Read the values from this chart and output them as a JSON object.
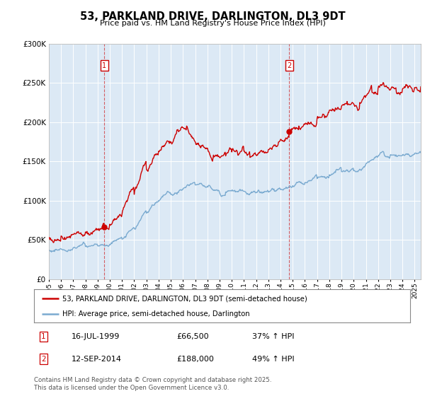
{
  "title": "53, PARKLAND DRIVE, DARLINGTON, DL3 9DT",
  "subtitle": "Price paid vs. HM Land Registry's House Price Index (HPI)",
  "plot_bg_color": "#dce9f5",
  "ylim": [
    0,
    300000
  ],
  "yticks": [
    0,
    50000,
    100000,
    150000,
    200000,
    250000,
    300000
  ],
  "ytick_labels": [
    "£0",
    "£50K",
    "£100K",
    "£150K",
    "£200K",
    "£250K",
    "£300K"
  ],
  "sale1_date_x": 1999.54,
  "sale1_price": 66500,
  "sale2_date_x": 2014.71,
  "sale2_price": 188000,
  "red_line_color": "#cc0000",
  "blue_line_color": "#7aaad0",
  "legend_label_red": "53, PARKLAND DRIVE, DARLINGTON, DL3 9DT (semi-detached house)",
  "legend_label_blue": "HPI: Average price, semi-detached house, Darlington",
  "footer": "Contains HM Land Registry data © Crown copyright and database right 2025.\nThis data is licensed under the Open Government Licence v3.0.",
  "xmin": 1995,
  "xmax": 2025.5
}
